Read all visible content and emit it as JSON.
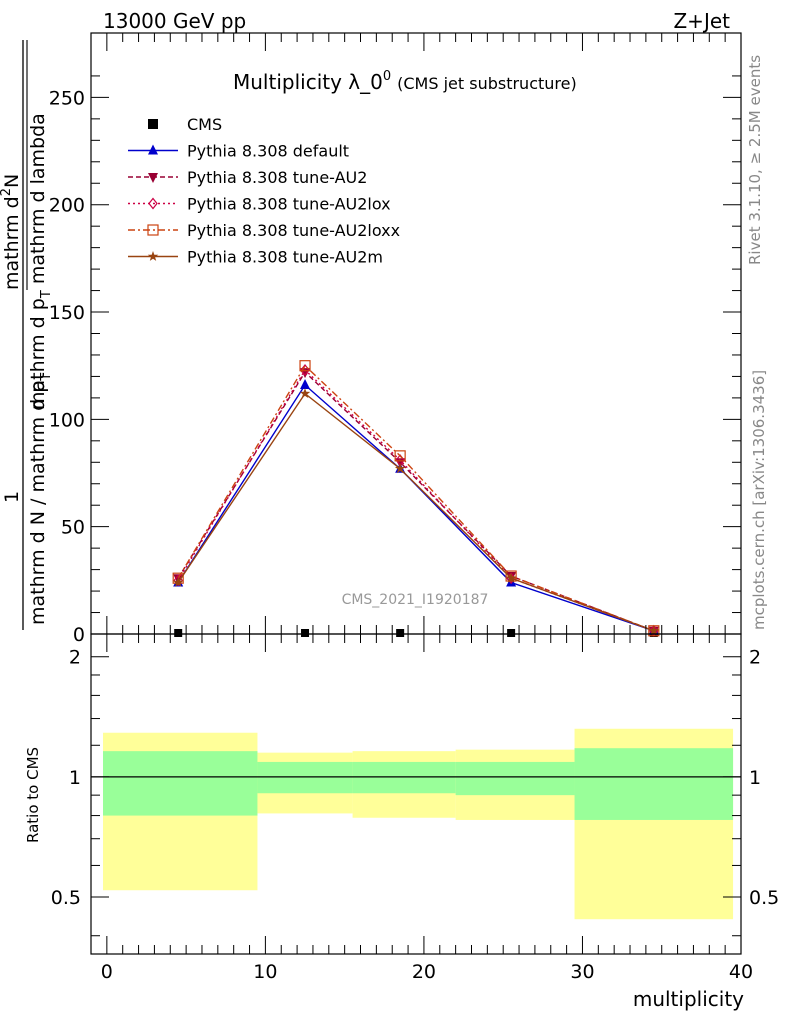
{
  "header": {
    "left": "13000 GeV pp",
    "right": "Z+Jet"
  },
  "side_labels": {
    "rivet": "Rivet 3.1.10, ≥ 2.5M events",
    "mcplots": "mcplots.cern.ch [arXiv:1306.3436]"
  },
  "chart_data": [
    {
      "type": "line",
      "title": "Multiplicity λ_0",
      "title_superscript": "0",
      "subtitle": "(CMS jet substructure)",
      "watermark": "CMS_2021_I1920187",
      "ylabel_parts": {
        "numerator": "1",
        "denominator": "mathrm d N / mathrm d p",
        "denominator_sub": "T",
        "right_top": "mathrm d",
        "right_top_sup": "2",
        "right_top_tail": "N",
        "right_bottom": "mathrm d p",
        "right_bottom_sub": "T",
        "right_bottom_tail": " mathrm d lambda"
      },
      "ylim": [
        0,
        280
      ],
      "yticks": [
        0,
        50,
        100,
        150,
        200,
        250
      ],
      "xlim": [
        -1,
        40
      ],
      "legend_position": "top-left",
      "series": [
        {
          "name": "CMS",
          "color": "#000000",
          "style": "data",
          "marker": "square",
          "x": [
            4.5,
            12.5,
            18.5,
            25.5,
            34.5
          ],
          "y": [
            0.5,
            0.5,
            0.5,
            0.5,
            0.5
          ]
        },
        {
          "name": "Pythia 8.308 default",
          "color": "#0000cc",
          "style": "solid",
          "marker": "triangle-up",
          "x": [
            4.5,
            12.5,
            18.5,
            25.5,
            34.5
          ],
          "y": [
            24,
            116,
            77,
            24,
            1.5
          ]
        },
        {
          "name": "Pythia 8.308 tune-AU2",
          "color": "#990033",
          "style": "dash",
          "marker": "triangle-down",
          "x": [
            4.5,
            12.5,
            18.5,
            25.5,
            34.5
          ],
          "y": [
            26,
            122,
            80,
            27,
            1.5
          ]
        },
        {
          "name": "Pythia 8.308 tune-AU2lox",
          "color": "#cc0044",
          "style": "dot",
          "marker": "diamond",
          "x": [
            4.5,
            12.5,
            18.5,
            25.5,
            34.5
          ],
          "y": [
            25,
            123,
            81,
            26,
            1.5
          ]
        },
        {
          "name": "Pythia 8.308 tune-AU2loxx",
          "color": "#cc4411",
          "style": "dashdot",
          "marker": "square-open",
          "x": [
            4.5,
            12.5,
            18.5,
            25.5,
            34.5
          ],
          "y": [
            26,
            125,
            83,
            27,
            1.5
          ]
        },
        {
          "name": "Pythia 8.308 tune-AU2m",
          "color": "#994411",
          "style": "solid",
          "marker": "star",
          "x": [
            4.5,
            12.5,
            18.5,
            25.5,
            34.5
          ],
          "y": [
            24,
            112,
            77,
            26,
            1.5
          ]
        }
      ]
    },
    {
      "type": "area",
      "ylabel": "Ratio to CMS",
      "xlabel": "multiplicity",
      "xlim": [
        -1,
        40
      ],
      "xticks": [
        0,
        10,
        20,
        30,
        40
      ],
      "ylim": [
        0.36,
        2.28
      ],
      "yticks": [
        0.5,
        1,
        2
      ],
      "reference_line": 1,
      "bins": [
        {
          "x0": -1,
          "x1": 9.5,
          "inner": [
            0.8,
            1.16
          ],
          "outer": [
            0.52,
            1.29
          ]
        },
        {
          "x0": 9.5,
          "x1": 15.5,
          "inner": [
            0.91,
            1.09
          ],
          "outer": [
            0.81,
            1.15
          ]
        },
        {
          "x0": 15.5,
          "x1": 22,
          "inner": [
            0.91,
            1.09
          ],
          "outer": [
            0.79,
            1.16
          ]
        },
        {
          "x0": 22,
          "x1": 29.5,
          "inner": [
            0.9,
            1.09
          ],
          "outer": [
            0.78,
            1.17
          ]
        },
        {
          "x0": 29.5,
          "x1": 39.5,
          "inner": [
            0.78,
            1.18
          ],
          "outer": [
            0.44,
            1.32
          ]
        }
      ],
      "band_colors": {
        "inner": "#99ff99",
        "outer": "#ffff99"
      }
    }
  ]
}
